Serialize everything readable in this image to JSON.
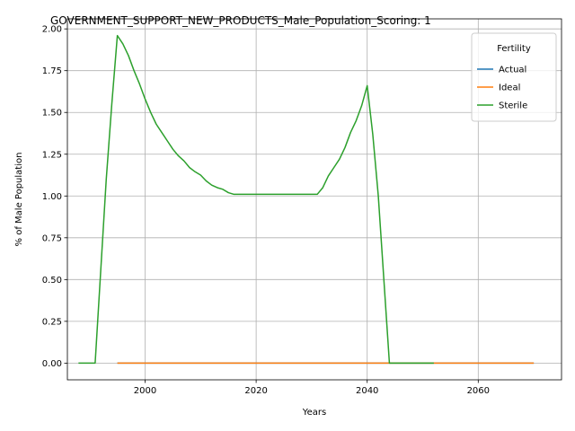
{
  "chart_data": {
    "type": "line",
    "title": "GOVERNMENT_SUPPORT_NEW_PRODUCTS_Male_Population_Scoring: 1",
    "xlabel": "Years",
    "ylabel": "% of Male Population",
    "xlim": [
      1986,
      2075
    ],
    "ylim": [
      -0.1,
      2.06
    ],
    "xticks": [
      2000,
      2020,
      2040,
      2060
    ],
    "yticks": [
      0.0,
      0.25,
      0.5,
      0.75,
      1.0,
      1.25,
      1.5,
      1.75,
      2.0
    ],
    "ytick_labels": [
      "0.00",
      "0.25",
      "0.50",
      "0.75",
      "1.00",
      "1.25",
      "1.50",
      "1.75",
      "2.00"
    ],
    "grid": true,
    "legend": {
      "title": "Fertility",
      "placement": "upper right"
    },
    "series": [
      {
        "name": "Actual",
        "color": "#1f77b4",
        "x": [
          1995,
          2070
        ],
        "y": [
          0.0,
          0.0
        ]
      },
      {
        "name": "Ideal",
        "color": "#ff7f0e",
        "x": [
          1995,
          2070
        ],
        "y": [
          0.0,
          0.0
        ]
      },
      {
        "name": "Sterile",
        "color": "#2ca02c",
        "x": [
          1988,
          1989,
          1990,
          1991,
          1992,
          1993,
          1994,
          1995,
          1996,
          1997,
          1998,
          1999,
          2000,
          2001,
          2002,
          2003,
          2004,
          2005,
          2006,
          2007,
          2008,
          2009,
          2010,
          2011,
          2012,
          2013,
          2014,
          2015,
          2016,
          2017,
          2018,
          2020,
          2025,
          2030,
          2031,
          2032,
          2033,
          2034,
          2035,
          2036,
          2037,
          2038,
          2039,
          2040,
          2041,
          2042,
          2043,
          2044,
          2045,
          2050,
          2052
        ],
        "y": [
          0.0,
          0.0,
          0.0,
          0.0,
          0.55,
          1.1,
          1.55,
          1.96,
          1.91,
          1.84,
          1.75,
          1.67,
          1.58,
          1.5,
          1.43,
          1.38,
          1.33,
          1.28,
          1.24,
          1.21,
          1.17,
          1.145,
          1.125,
          1.09,
          1.065,
          1.05,
          1.04,
          1.02,
          1.01,
          1.01,
          1.01,
          1.01,
          1.01,
          1.01,
          1.01,
          1.05,
          1.12,
          1.17,
          1.22,
          1.29,
          1.38,
          1.45,
          1.54,
          1.66,
          1.37,
          1.0,
          0.5,
          0.0,
          0.0,
          0.0,
          0.0
        ]
      }
    ]
  }
}
